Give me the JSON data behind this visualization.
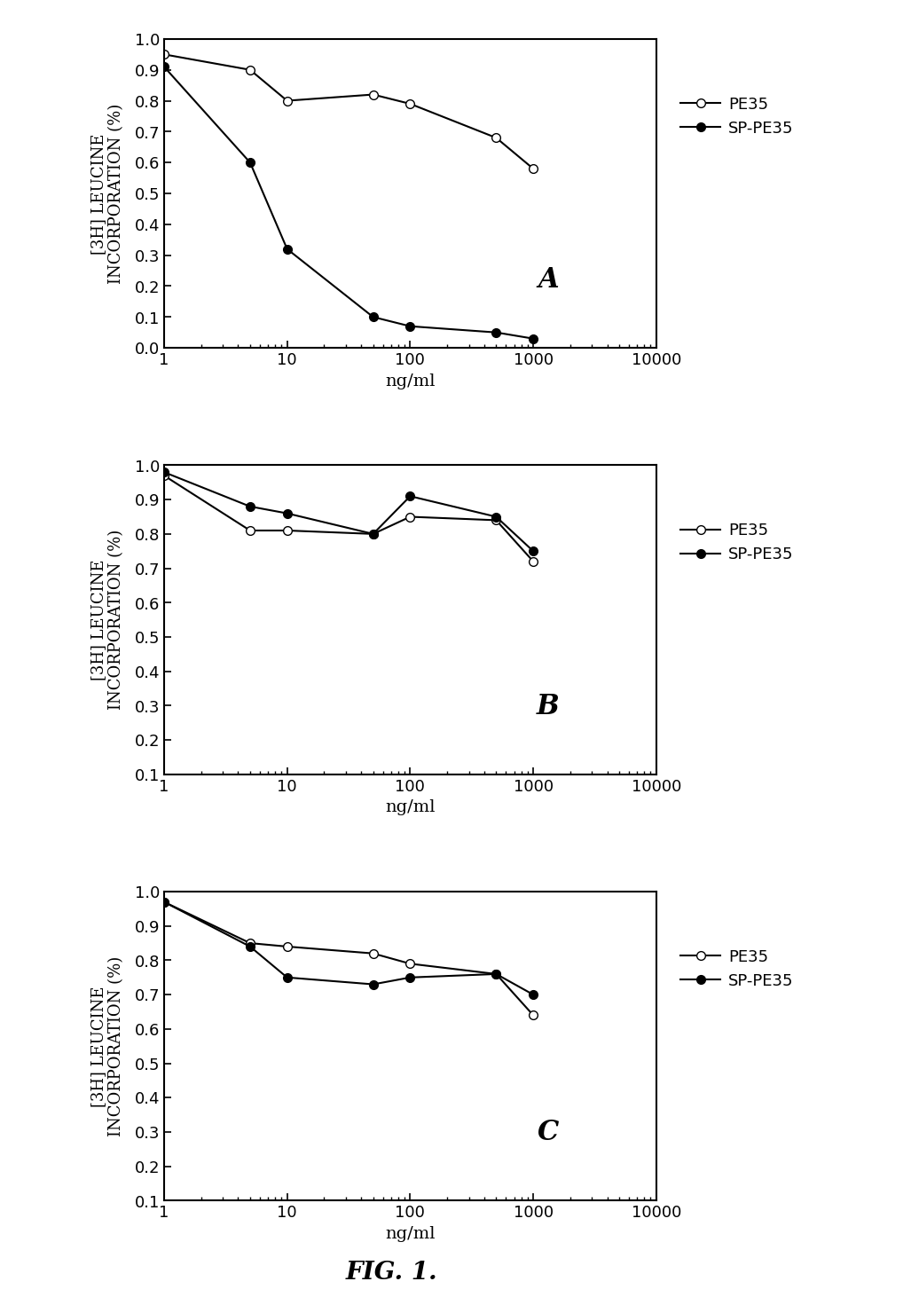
{
  "panel_A": {
    "PE35_x": [
      1,
      5,
      10,
      50,
      100,
      500,
      1000
    ],
    "PE35_y": [
      0.95,
      0.9,
      0.8,
      0.82,
      0.79,
      0.68,
      0.58
    ],
    "SPPE35_x": [
      1,
      5,
      10,
      50,
      100,
      500,
      1000
    ],
    "SPPE35_y": [
      0.91,
      0.6,
      0.32,
      0.1,
      0.07,
      0.05,
      0.03
    ],
    "label": "A",
    "ylim": [
      0.0,
      1.0
    ],
    "yticks": [
      0.0,
      0.1,
      0.2,
      0.3,
      0.4,
      0.5,
      0.6,
      0.7,
      0.8,
      0.9,
      1.0
    ]
  },
  "panel_B": {
    "PE35_x": [
      1,
      5,
      10,
      50,
      100,
      500,
      1000
    ],
    "PE35_y": [
      0.97,
      0.81,
      0.81,
      0.8,
      0.85,
      0.84,
      0.72
    ],
    "SPPE35_x": [
      1,
      5,
      10,
      50,
      100,
      500,
      1000
    ],
    "SPPE35_y": [
      0.98,
      0.88,
      0.86,
      0.8,
      0.91,
      0.85,
      0.75
    ],
    "label": "B",
    "ylim": [
      0.1,
      1.0
    ],
    "yticks": [
      0.1,
      0.2,
      0.3,
      0.4,
      0.5,
      0.6,
      0.7,
      0.8,
      0.9,
      1.0
    ]
  },
  "panel_C": {
    "PE35_x": [
      1,
      5,
      10,
      50,
      100,
      500,
      1000
    ],
    "PE35_y": [
      0.97,
      0.85,
      0.84,
      0.82,
      0.79,
      0.76,
      0.64
    ],
    "SPPE35_x": [
      1,
      5,
      10,
      50,
      100,
      500,
      1000
    ],
    "SPPE35_y": [
      0.97,
      0.84,
      0.75,
      0.73,
      0.75,
      0.76,
      0.7
    ],
    "label": "C",
    "ylim": [
      0.1,
      1.0
    ],
    "yticks": [
      0.1,
      0.2,
      0.3,
      0.4,
      0.5,
      0.6,
      0.7,
      0.8,
      0.9,
      1.0
    ]
  },
  "xlabel": "ng/ml",
  "ylabel": "[3H] LEUCINE\nINCORPORATION (%)",
  "legend_PE35": "PE35",
  "legend_SPPE35": "SP-PE35",
  "fig_label": "FIG. 1.",
  "line_color": "black",
  "background_color": "white",
  "xlim": [
    1,
    10000
  ]
}
